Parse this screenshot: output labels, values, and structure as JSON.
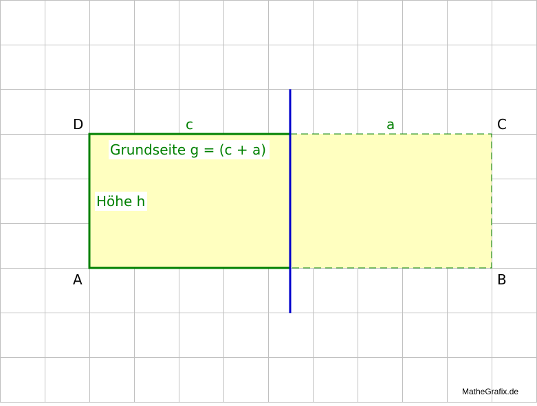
{
  "figure": {
    "points": {
      "A": "A",
      "B": "B",
      "C": "C",
      "D": "D"
    },
    "sides": {
      "c": "c",
      "a": "a"
    },
    "labels": {
      "base": "Grundseite g = (c + a)",
      "height": "Höhe h"
    },
    "credit": "MatheGrafix.de"
  },
  "colors": {
    "grid": "#c0c0c0",
    "fill": "#ffffc0",
    "outline": "#008000",
    "axis": "#0000cc",
    "label_green": "#008000",
    "label_black": "#000000"
  }
}
